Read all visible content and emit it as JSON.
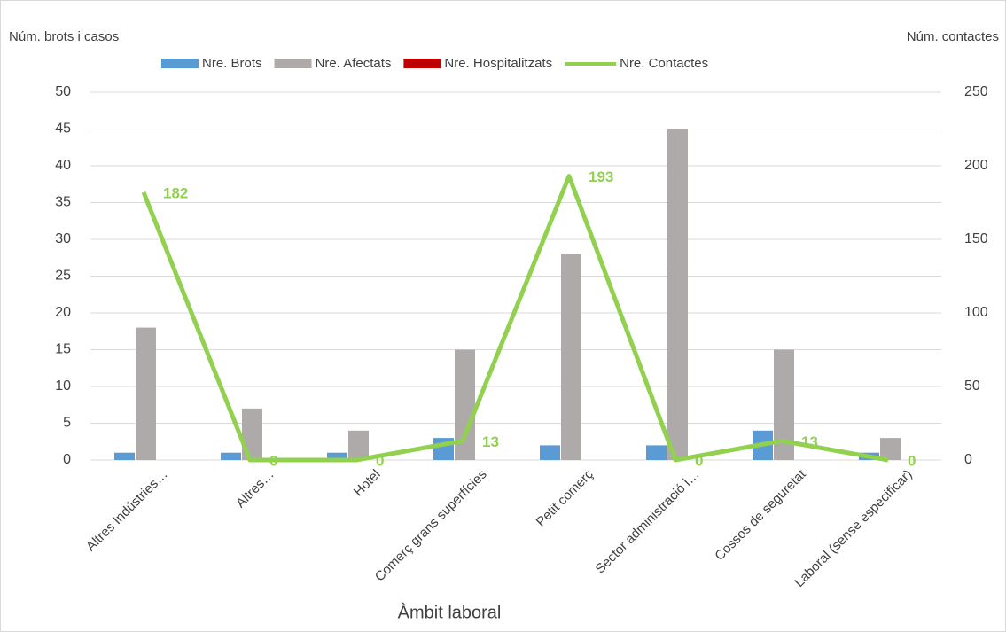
{
  "chart_data": {
    "type": "bar-line",
    "y_label": "Núm. brots i casos",
    "y2_label": "Núm. contactes",
    "x_label": "Àmbit laboral",
    "categories": [
      "Altres Indústries…",
      "Altres…",
      "Hotel",
      "Comerç grans superfícies",
      "Petit comerç",
      "Sector administració i…",
      "Cossos de seguretat",
      "Laboral (sense especificar)"
    ],
    "series": [
      {
        "name": "Nre. Brots",
        "type": "bar",
        "color": "#5b9bd5",
        "values": [
          1,
          1,
          1,
          3,
          2,
          2,
          4,
          1
        ]
      },
      {
        "name": "Nre.  Afectats",
        "type": "bar",
        "color": "#aeaaaa",
        "values": [
          18,
          7,
          4,
          15,
          28,
          45,
          15,
          3
        ]
      },
      {
        "name": "Nre.  Hospitalitzats",
        "type": "bar",
        "color": "#c00000",
        "values": [
          0,
          0,
          0,
          0,
          0,
          0,
          0,
          0
        ]
      },
      {
        "name": "Nre. Contactes",
        "type": "line",
        "axis": "y2",
        "color": "#92d050",
        "values": [
          182,
          0,
          0,
          13,
          193,
          0,
          13,
          0
        ],
        "data_labels": true
      }
    ],
    "ylim": [
      0,
      50
    ],
    "yticks": [
      0,
      5,
      10,
      15,
      20,
      25,
      30,
      35,
      40,
      45,
      50
    ],
    "y2lim": [
      0,
      250
    ],
    "y2ticks": [
      0,
      50,
      100,
      150,
      200,
      250
    ],
    "grid": true,
    "legend": "top"
  }
}
